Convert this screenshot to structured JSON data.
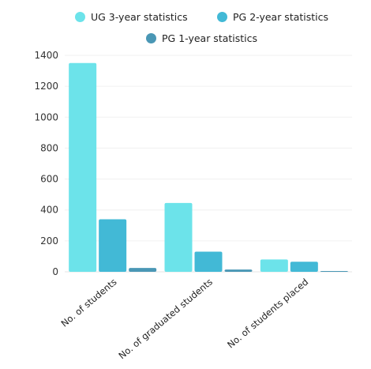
{
  "chart_data": {
    "type": "bar",
    "categories": [
      "No. of students",
      "No. of graduated students",
      "No. of students placed"
    ],
    "series": [
      {
        "name": "UG 3-year statistics",
        "values": [
          1350,
          445,
          80
        ],
        "color": "#6ce3ea"
      },
      {
        "name": "PG 2-year statistics",
        "values": [
          340,
          130,
          65
        ],
        "color": "#42b9d6"
      },
      {
        "name": "PG 1-year statistics",
        "values": [
          25,
          15,
          5
        ],
        "color": "#4a97b5"
      }
    ],
    "ylim": [
      0,
      1400
    ],
    "yticks": [
      0,
      200,
      400,
      600,
      800,
      1000,
      1200,
      1400
    ],
    "grid": true,
    "legend_position": "top"
  }
}
